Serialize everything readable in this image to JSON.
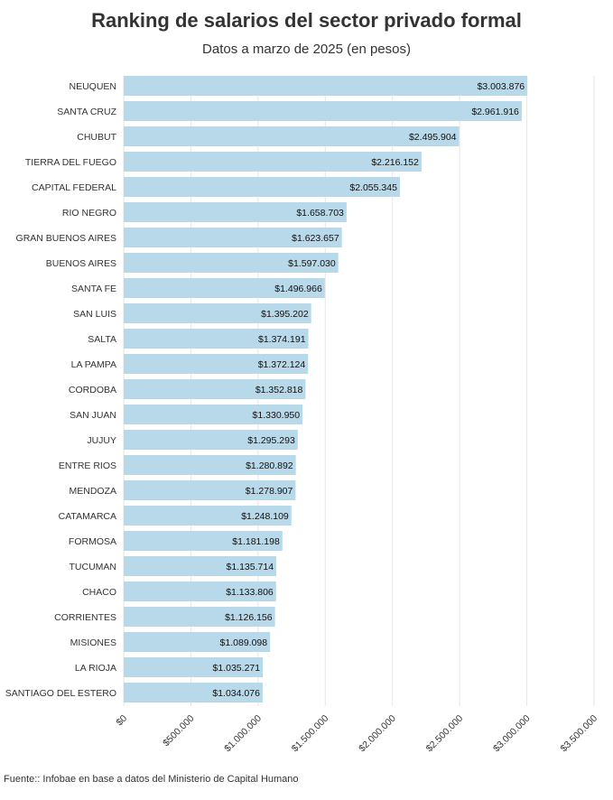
{
  "chart_data": {
    "type": "bar",
    "orientation": "horizontal",
    "title": "Ranking de salarios del sector privado formal",
    "subtitle": "Datos a marzo de 2025 (en pesos)",
    "source": "Fuente:: Infobae en base a datos del Ministerio de Capital Humano",
    "categories": [
      "NEUQUEN",
      "SANTA CRUZ",
      "CHUBUT",
      "TIERRA DEL FUEGO",
      "CAPITAL FEDERAL",
      "RIO NEGRO",
      "GRAN BUENOS AIRES",
      "BUENOS AIRES",
      "SANTA FE",
      "SAN LUIS",
      "SALTA",
      "LA PAMPA",
      "CORDOBA",
      "SAN JUAN",
      "JUJUY",
      "ENTRE RIOS",
      "MENDOZA",
      "CATAMARCA",
      "FORMOSA",
      "TUCUMAN",
      "CHACO",
      "CORRIENTES",
      "MISIONES",
      "LA RIOJA",
      "SANTIAGO DEL ESTERO"
    ],
    "values": [
      3003876,
      2961916,
      2495904,
      2216152,
      2055345,
      1658703,
      1623657,
      1597030,
      1496966,
      1395202,
      1374191,
      1372124,
      1352818,
      1330950,
      1295293,
      1280892,
      1278907,
      1248109,
      1181198,
      1135714,
      1133806,
      1126156,
      1089098,
      1035271,
      1034076
    ],
    "value_labels": [
      "$3.003.876",
      "$2.961.916",
      "$2.495.904",
      "$2.216.152",
      "$2.055.345",
      "$1.658.703",
      "$1.623.657",
      "$1.597.030",
      "$1.496.966",
      "$1.395.202",
      "$1.374.191",
      "$1.372.124",
      "$1.352.818",
      "$1.330.950",
      "$1.295.293",
      "$1.280.892",
      "$1.278.907",
      "$1.248.109",
      "$1.181.198",
      "$1.135.714",
      "$1.133.806",
      "$1.126.156",
      "$1.089.098",
      "$1.035.271",
      "$1.034.076"
    ],
    "x_ticks": [
      0,
      500000,
      1000000,
      1500000,
      2000000,
      2500000,
      3000000,
      3500000
    ],
    "x_tick_labels": [
      "$0",
      "$500.000",
      "$1.000.000",
      "$1.500.000",
      "$2.000.000",
      "$2.500.000",
      "$3.000.000",
      "$3.500.000"
    ],
    "xlim": [
      0,
      3500000
    ],
    "xlabel": "",
    "ylabel": "",
    "grid": true,
    "bar_color": "#b8d9ea"
  }
}
